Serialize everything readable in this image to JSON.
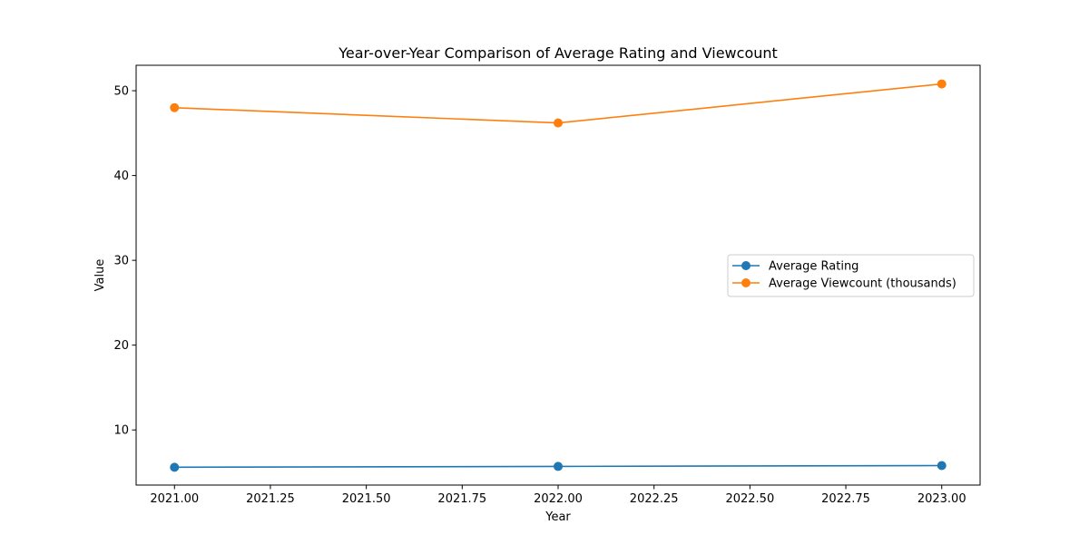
{
  "chart_data": {
    "type": "line",
    "title": "Year-over-Year Comparison of Average Rating and Viewcount",
    "xlabel": "Year",
    "ylabel": "Value",
    "xlim": [
      2020.9,
      2023.1
    ],
    "ylim": [
      3.5,
      53
    ],
    "x_ticks": [
      2021.0,
      2021.25,
      2021.5,
      2021.75,
      2022.0,
      2022.25,
      2022.5,
      2022.75,
      2023.0
    ],
    "x_tick_labels": [
      "2021.00",
      "2021.25",
      "2021.50",
      "2021.75",
      "2022.00",
      "2022.25",
      "2022.50",
      "2022.75",
      "2023.00"
    ],
    "y_ticks": [
      10,
      20,
      30,
      40,
      50
    ],
    "y_tick_labels": [
      "10",
      "20",
      "30",
      "40",
      "50"
    ],
    "x": [
      2021,
      2022,
      2023
    ],
    "series": [
      {
        "name": "Average Rating",
        "values": [
          5.6,
          5.7,
          5.8
        ],
        "color": "#1f77b4"
      },
      {
        "name": "Average Viewcount (thousands)",
        "values": [
          48.0,
          46.2,
          50.8
        ],
        "color": "#ff7f0e"
      }
    ],
    "grid": false,
    "legend_position": "center-right"
  }
}
